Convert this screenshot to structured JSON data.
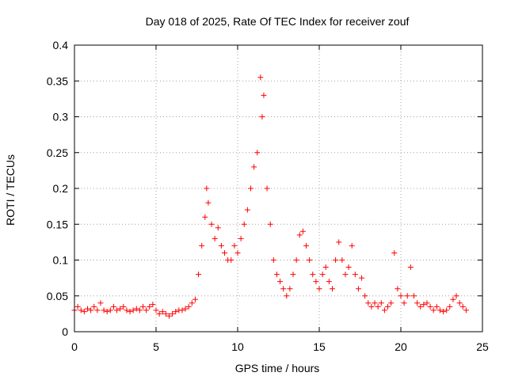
{
  "chart_data": {
    "type": "scatter",
    "title": "Day 018 of 2025, Rate Of TEC Index for receiver zouf",
    "xlabel": "GPS time / hours",
    "ylabel": "ROTI / TECUs",
    "xlim": [
      0,
      25
    ],
    "ylim": [
      0,
      0.4
    ],
    "x_ticks": [
      "0",
      "5",
      "10",
      "15",
      "20",
      "25"
    ],
    "y_ticks": [
      "0",
      "0.05",
      "0.1",
      "0.15",
      "0.2",
      "0.25",
      "0.3",
      "0.35",
      "0.4"
    ],
    "grid": true,
    "marker": "plus",
    "color": "#ff0000",
    "x": [
      0.0,
      0.2,
      0.4,
      0.6,
      0.8,
      1.0,
      1.2,
      1.4,
      1.6,
      1.8,
      2.0,
      2.2,
      2.4,
      2.6,
      2.8,
      3.0,
      3.2,
      3.4,
      3.6,
      3.8,
      4.0,
      4.2,
      4.4,
      4.6,
      4.8,
      5.0,
      5.2,
      5.4,
      5.6,
      5.8,
      6.0,
      6.2,
      6.4,
      6.6,
      6.8,
      7.0,
      7.2,
      7.4,
      7.6,
      7.8,
      8.0,
      8.1,
      8.2,
      8.4,
      8.6,
      8.8,
      9.0,
      9.2,
      9.4,
      9.6,
      9.8,
      10.0,
      10.2,
      10.4,
      10.6,
      10.8,
      11.0,
      11.2,
      11.4,
      11.5,
      11.6,
      11.8,
      12.0,
      12.2,
      12.4,
      12.6,
      12.8,
      13.0,
      13.2,
      13.4,
      13.6,
      13.8,
      14.0,
      14.2,
      14.4,
      14.6,
      14.8,
      15.0,
      15.2,
      15.4,
      15.6,
      15.8,
      16.0,
      16.2,
      16.4,
      16.6,
      16.8,
      17.0,
      17.2,
      17.4,
      17.6,
      17.8,
      18.0,
      18.2,
      18.4,
      18.6,
      18.8,
      19.0,
      19.2,
      19.4,
      19.6,
      19.8,
      20.0,
      20.2,
      20.4,
      20.6,
      20.8,
      21.0,
      21.2,
      21.4,
      21.6,
      21.8,
      22.0,
      22.2,
      22.4,
      22.6,
      22.8,
      23.0,
      23.2,
      23.4,
      23.6,
      23.8,
      24.0
    ],
    "y": [
      0.03,
      0.035,
      0.03,
      0.028,
      0.032,
      0.03,
      0.035,
      0.03,
      0.04,
      0.03,
      0.028,
      0.03,
      0.035,
      0.03,
      0.032,
      0.035,
      0.03,
      0.028,
      0.03,
      0.032,
      0.03,
      0.035,
      0.03,
      0.035,
      0.038,
      0.03,
      0.025,
      0.028,
      0.025,
      0.022,
      0.025,
      0.028,
      0.03,
      0.03,
      0.032,
      0.035,
      0.04,
      0.045,
      0.08,
      0.12,
      0.16,
      0.2,
      0.18,
      0.15,
      0.13,
      0.145,
      0.12,
      0.11,
      0.1,
      0.1,
      0.12,
      0.11,
      0.13,
      0.15,
      0.17,
      0.2,
      0.23,
      0.25,
      0.355,
      0.3,
      0.33,
      0.2,
      0.15,
      0.1,
      0.08,
      0.07,
      0.06,
      0.05,
      0.06,
      0.08,
      0.1,
      0.135,
      0.14,
      0.12,
      0.1,
      0.08,
      0.07,
      0.06,
      0.08,
      0.09,
      0.07,
      0.06,
      0.1,
      0.125,
      0.1,
      0.08,
      0.09,
      0.12,
      0.08,
      0.06,
      0.075,
      0.05,
      0.04,
      0.035,
      0.04,
      0.035,
      0.04,
      0.03,
      0.035,
      0.04,
      0.11,
      0.06,
      0.05,
      0.04,
      0.05,
      0.09,
      0.05,
      0.04,
      0.035,
      0.038,
      0.04,
      0.035,
      0.03,
      0.035,
      0.03,
      0.028,
      0.03,
      0.035,
      0.045,
      0.05,
      0.04,
      0.035,
      0.03
    ]
  }
}
